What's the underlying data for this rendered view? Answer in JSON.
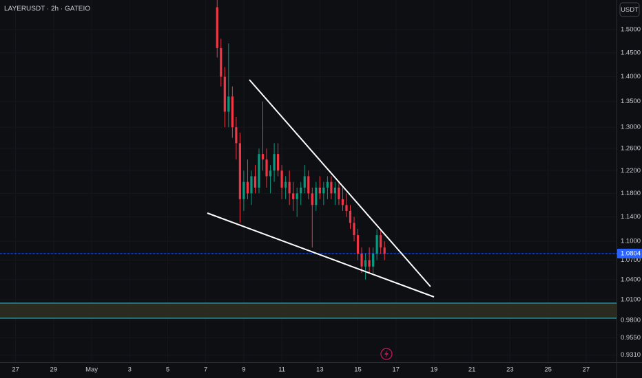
{
  "chart_data": {
    "type": "candlestick",
    "title": "LAYERUSDT · 2h · GATEIO",
    "currency": "USDT",
    "log_scale": true,
    "up_color": "#089981",
    "down_color": "#f23645",
    "xlim": [
      -3.82,
      28.6
    ],
    "xticks": [
      {
        "value": -3,
        "label": "27"
      },
      {
        "value": -1,
        "label": "29"
      },
      {
        "value": 1,
        "label": "May"
      },
      3,
      5,
      7,
      9,
      11,
      13,
      15,
      17,
      19,
      21,
      23,
      25,
      27
    ],
    "ylim": [
      0.9214,
      1.5665
    ],
    "yticks": [
      {
        "value": 1.5,
        "label": "1.5000"
      },
      {
        "value": 1.45,
        "label": "1.4500"
      },
      {
        "value": 1.4,
        "label": "1.4000"
      },
      {
        "value": 1.35,
        "label": "1.3500"
      },
      {
        "value": 1.3,
        "label": "1.3000"
      },
      {
        "value": 1.26,
        "label": "1.2600"
      },
      {
        "value": 1.22,
        "label": "1.2200"
      },
      {
        "value": 1.18,
        "label": "1.1800"
      },
      {
        "value": 1.14,
        "label": "1.1400"
      },
      {
        "value": 1.1,
        "label": "1.1000"
      },
      {
        "value": 1.07,
        "label": "1.0700"
      },
      {
        "value": 1.04,
        "label": "1.0400"
      },
      {
        "value": 1.01,
        "label": "1.0100"
      },
      {
        "value": 0.98,
        "label": "0.9800"
      },
      {
        "value": 0.955,
        "label": "0.9550"
      },
      {
        "value": 0.931,
        "label": "0.9310"
      }
    ],
    "last_price": 1.0804,
    "last_price_color": "#2962ff",
    "series": [
      {
        "x": [
          7.6,
          7.8,
          8.0,
          8.2,
          8.4,
          8.6,
          8.8,
          9.0,
          9.2,
          9.4,
          9.6,
          9.8,
          10.0,
          10.2,
          10.4,
          10.6,
          10.8,
          11.0,
          11.2,
          11.4,
          11.6,
          11.8,
          12.0,
          12.2,
          12.4,
          12.6,
          12.8,
          13.0,
          13.2,
          13.4,
          13.6,
          13.8,
          14.0,
          14.2,
          14.4,
          14.6,
          14.8,
          15.0,
          15.2,
          15.4,
          15.6,
          15.8,
          16.0,
          16.2,
          16.4
        ],
        "open": [
          1.55,
          1.46,
          1.4,
          1.33,
          1.36,
          1.3,
          1.27,
          1.17,
          1.2,
          1.18,
          1.21,
          1.19,
          1.25,
          1.24,
          1.21,
          1.22,
          1.25,
          1.22,
          1.19,
          1.2,
          1.18,
          1.17,
          1.18,
          1.19,
          1.21,
          1.18,
          1.16,
          1.19,
          1.18,
          1.19,
          1.2,
          1.18,
          1.19,
          1.17,
          1.16,
          1.15,
          1.13,
          1.11,
          1.08,
          1.06,
          1.07,
          1.06,
          1.08,
          1.11,
          1.09
        ],
        "high": [
          1.57,
          1.48,
          1.42,
          1.47,
          1.38,
          1.32,
          1.29,
          1.22,
          1.24,
          1.22,
          1.23,
          1.26,
          1.35,
          1.26,
          1.23,
          1.27,
          1.27,
          1.23,
          1.21,
          1.22,
          1.2,
          1.19,
          1.2,
          1.23,
          1.22,
          1.19,
          1.2,
          1.21,
          1.2,
          1.21,
          1.21,
          1.2,
          1.2,
          1.19,
          1.18,
          1.16,
          1.14,
          1.12,
          1.09,
          1.08,
          1.09,
          1.09,
          1.12,
          1.12,
          1.1
        ],
        "low": [
          1.44,
          1.38,
          1.3,
          1.3,
          1.28,
          1.24,
          1.13,
          1.15,
          1.17,
          1.16,
          1.18,
          1.18,
          1.22,
          1.19,
          1.18,
          1.2,
          1.21,
          1.17,
          1.17,
          1.16,
          1.15,
          1.14,
          1.16,
          1.18,
          1.17,
          1.09,
          1.15,
          1.17,
          1.16,
          1.17,
          1.17,
          1.16,
          1.16,
          1.15,
          1.14,
          1.12,
          1.1,
          1.07,
          1.05,
          1.04,
          1.05,
          1.05,
          1.07,
          1.08,
          1.07
        ],
        "close": [
          1.46,
          1.4,
          1.33,
          1.36,
          1.3,
          1.27,
          1.17,
          1.2,
          1.18,
          1.21,
          1.19,
          1.25,
          1.24,
          1.21,
          1.22,
          1.25,
          1.22,
          1.19,
          1.2,
          1.18,
          1.17,
          1.18,
          1.19,
          1.21,
          1.18,
          1.16,
          1.19,
          1.18,
          1.19,
          1.2,
          1.18,
          1.19,
          1.17,
          1.16,
          1.15,
          1.13,
          1.11,
          1.08,
          1.06,
          1.07,
          1.06,
          1.08,
          1.11,
          1.09,
          1.0804
        ]
      }
    ]
  }
}
